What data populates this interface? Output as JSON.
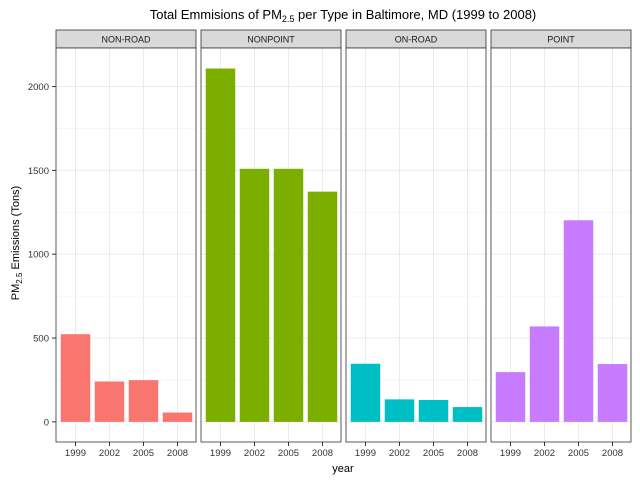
{
  "chart_data": {
    "type": "bar",
    "layout": "facets",
    "title": {
      "pre": "Total Emmisions of PM",
      "sub": "2.5",
      "post": " per Type in Baltimore, MD (1999 to 2008)"
    },
    "xlabel": "year",
    "ylabel": {
      "pre": "PM",
      "sub": "2.5",
      "post": " Emissions (Tons)"
    },
    "ylim": [
      -120,
      2230
    ],
    "yticks": [
      0,
      500,
      1000,
      1500,
      2000
    ],
    "grid": true,
    "categories": [
      "1999",
      "2002",
      "2005",
      "2008"
    ],
    "facets": [
      {
        "name": "NON-ROAD",
        "color": "#F8766D",
        "values": [
          522.9,
          240.8,
          248.9,
          55.8
        ]
      },
      {
        "name": "NONPOINT",
        "color": "#7CAE00",
        "values": [
          2107.6,
          1509.5,
          1509.5,
          1373.2
        ]
      },
      {
        "name": "ON-ROAD",
        "color": "#00BFC4",
        "values": [
          346.8,
          134.3,
          130.4,
          88.3
        ]
      },
      {
        "name": "POINT",
        "color": "#C77CFF",
        "values": [
          296.8,
          569.3,
          1202.5,
          344.98
        ]
      }
    ]
  }
}
